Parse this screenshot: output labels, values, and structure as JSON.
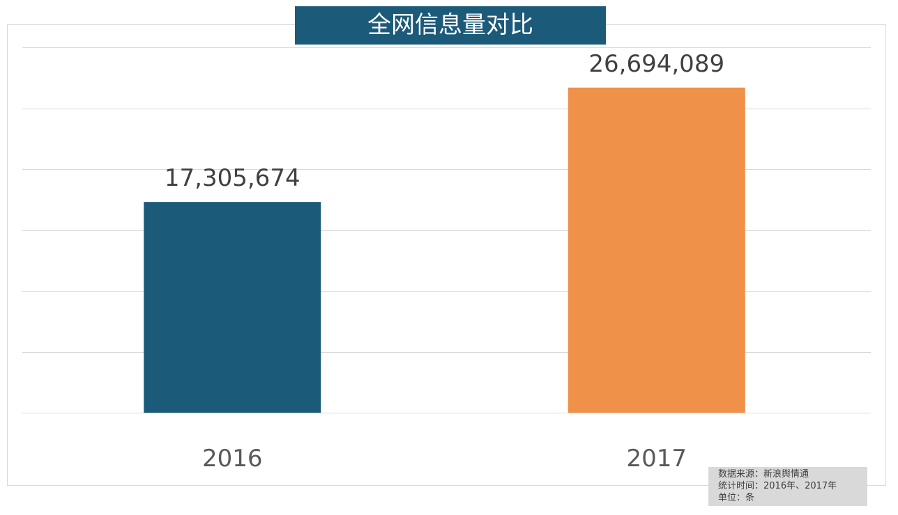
{
  "chart_data": {
    "type": "bar",
    "title": "全网信息量对比",
    "categories": [
      "2016",
      "2017"
    ],
    "values": [
      17305674,
      26694089
    ],
    "data_labels": [
      "17,305,674",
      "26,694,089"
    ],
    "colors": [
      "#1c5a7a",
      "#f0914a"
    ],
    "ylim": [
      0,
      30000000
    ],
    "ytick_step": 5000000,
    "grid": true,
    "y_axis_labels_shown": false,
    "xlabel": "",
    "ylabel": ""
  },
  "source_note": {
    "line1": "数据来源：新浪舆情通",
    "line2": "统计时间：2016年、2017年",
    "line3": "单位：条"
  }
}
